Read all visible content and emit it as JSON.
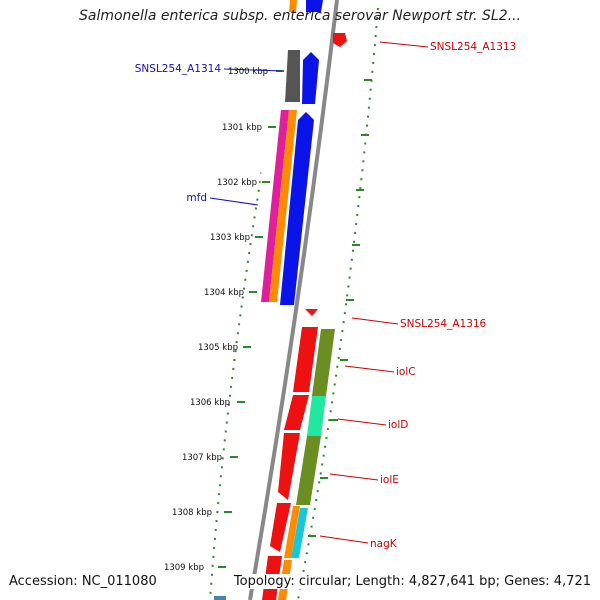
{
  "title": "Salmonella enterica subsp. enterica serovar Newport str. SL2...",
  "accession": "Accession: NC_011080",
  "topology": "Topology: circular; Length: 4,827,641 bp; Genes: 4,721",
  "kbp_ticks": [
    "1300 kbp",
    "1301 kbp",
    "1302 kbp",
    "1303 kbp",
    "1304 kbp",
    "1305 kbp",
    "1306 kbp",
    "1307 kbp",
    "1308 kbp",
    "1309 kbp"
  ],
  "gene_labels": {
    "snsl_a1313": "SNSL254_A1313",
    "snsl_a1314": "SNSL254_A1314",
    "mfd": "mfd",
    "snsl_a1316": "SNSL254_A1316",
    "iolc": "iolC",
    "iold": "iolD",
    "iole": "iolE",
    "nagk": "nagK"
  },
  "colors": {
    "label_blue": "#1010c0",
    "label_red": "#cc0000",
    "tick_green": "#2a8a2a",
    "backbone": "#888888",
    "feature_red": "#ee1111",
    "feature_blue": "#0a14e8",
    "feature_gray": "#555555",
    "feature_orange": "#ff8c00",
    "feature_magenta": "#e0209a",
    "feature_olive": "#6b8e23",
    "feature_mint": "#20e8a0",
    "feature_cyan": "#18c8d8"
  }
}
